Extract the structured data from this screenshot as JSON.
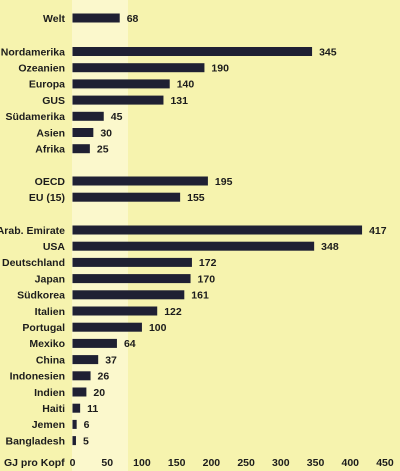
{
  "chart_data": {
    "type": "bar",
    "orientation": "horizontal",
    "xlabel": "GJ pro Kopf",
    "xlim": [
      0,
      450
    ],
    "xticks": [
      0,
      50,
      100,
      150,
      200,
      250,
      300,
      350,
      400,
      450
    ],
    "xtick_labels": [
      "0",
      "50",
      "100",
      "150",
      "200",
      "250",
      "300",
      "350",
      "400",
      "450"
    ],
    "grid": false,
    "legend": "none",
    "colors": {
      "background": "#f6f3ae",
      "bar": "#1f2033",
      "text": "#1c1c1c"
    },
    "groups": [
      {
        "categories": [
          "Welt"
        ],
        "values": [
          68
        ],
        "value_labels": [
          "68"
        ]
      },
      {
        "categories": [
          "Nordamerika",
          "Ozeanien",
          "Europa",
          "GUS",
          "Südamerika",
          "Asien",
          "Afrika"
        ],
        "values": [
          345,
          190,
          140,
          131,
          45,
          30,
          25
        ],
        "value_labels": [
          "345",
          "190",
          "140",
          "131",
          "45",
          "30",
          "25"
        ]
      },
      {
        "categories": [
          "OECD",
          "EU (15)"
        ],
        "values": [
          195,
          155
        ],
        "value_labels": [
          "195",
          "155"
        ]
      },
      {
        "categories": [
          "Arab. Emirate",
          "USA",
          "Deutschland",
          "Japan",
          "Südkorea",
          "Italien",
          "Portugal",
          "Mexiko",
          "China",
          "Indonesien",
          "Indien",
          "Haiti",
          "Jemen",
          "Bangladesh"
        ],
        "values": [
          417,
          348,
          172,
          170,
          161,
          122,
          100,
          64,
          37,
          26,
          20,
          11,
          6,
          5
        ],
        "value_labels": [
          "417",
          "348",
          "172",
          "170",
          "161",
          "122",
          "100",
          "64",
          "37",
          "26",
          "20",
          "11",
          "6",
          "5"
        ]
      }
    ]
  }
}
